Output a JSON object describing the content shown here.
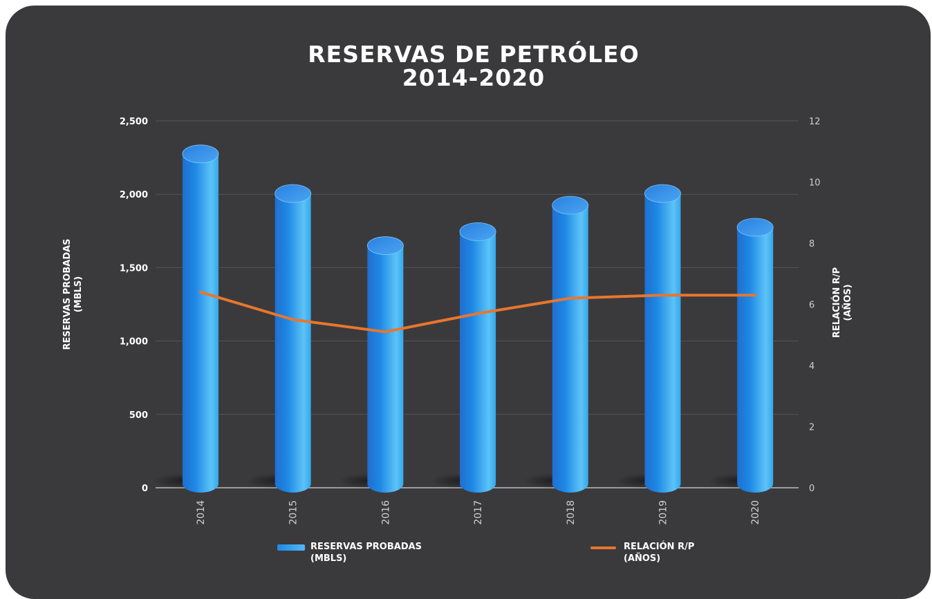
{
  "chart_data": {
    "type": "bar",
    "title": [
      "RESERVAS DE PETRÓLEO",
      "2014-2020"
    ],
    "categories": [
      "2014",
      "2015",
      "2016",
      "2017",
      "2018",
      "2019",
      "2020"
    ],
    "series": [
      {
        "name": "RESERVAS PROBADAS (MBLS)",
        "type": "bar",
        "axis": "left",
        "values": [
          2275,
          2005,
          1650,
          1745,
          1925,
          2005,
          1775
        ]
      },
      {
        "name": "RELACIÓN R/P (AÑOS)",
        "type": "line",
        "axis": "right",
        "values": [
          6.4,
          5.5,
          5.1,
          5.7,
          6.2,
          6.3,
          6.3
        ]
      }
    ],
    "ylabel": [
      "RESERVAS PROBADAS",
      "(MBLS)"
    ],
    "y2label": [
      "RELACIÓN R/P",
      "(AÑOS)"
    ],
    "ylim": [
      0,
      2500
    ],
    "y2lim": [
      0,
      12
    ],
    "yticks": [
      "0",
      "500",
      "1,000",
      "1,500",
      "2,000",
      "2,500"
    ],
    "y2ticks": [
      "0",
      "2",
      "4",
      "6",
      "8",
      "10",
      "12"
    ],
    "grid": true,
    "legend_position": "bottom",
    "colors": {
      "background": "#3a3a3c",
      "bar": "#1e88e5",
      "bar_light": "#5cc3f7",
      "line": "#e8762d",
      "grid": "#555558",
      "text": "#ffffff"
    }
  },
  "legend": {
    "bars_line1": "RESERVAS PROBADAS",
    "bars_line2": "(MBLS)",
    "line_line1": "RELACIÓN R/P",
    "line_line2": "(AÑOS)"
  }
}
